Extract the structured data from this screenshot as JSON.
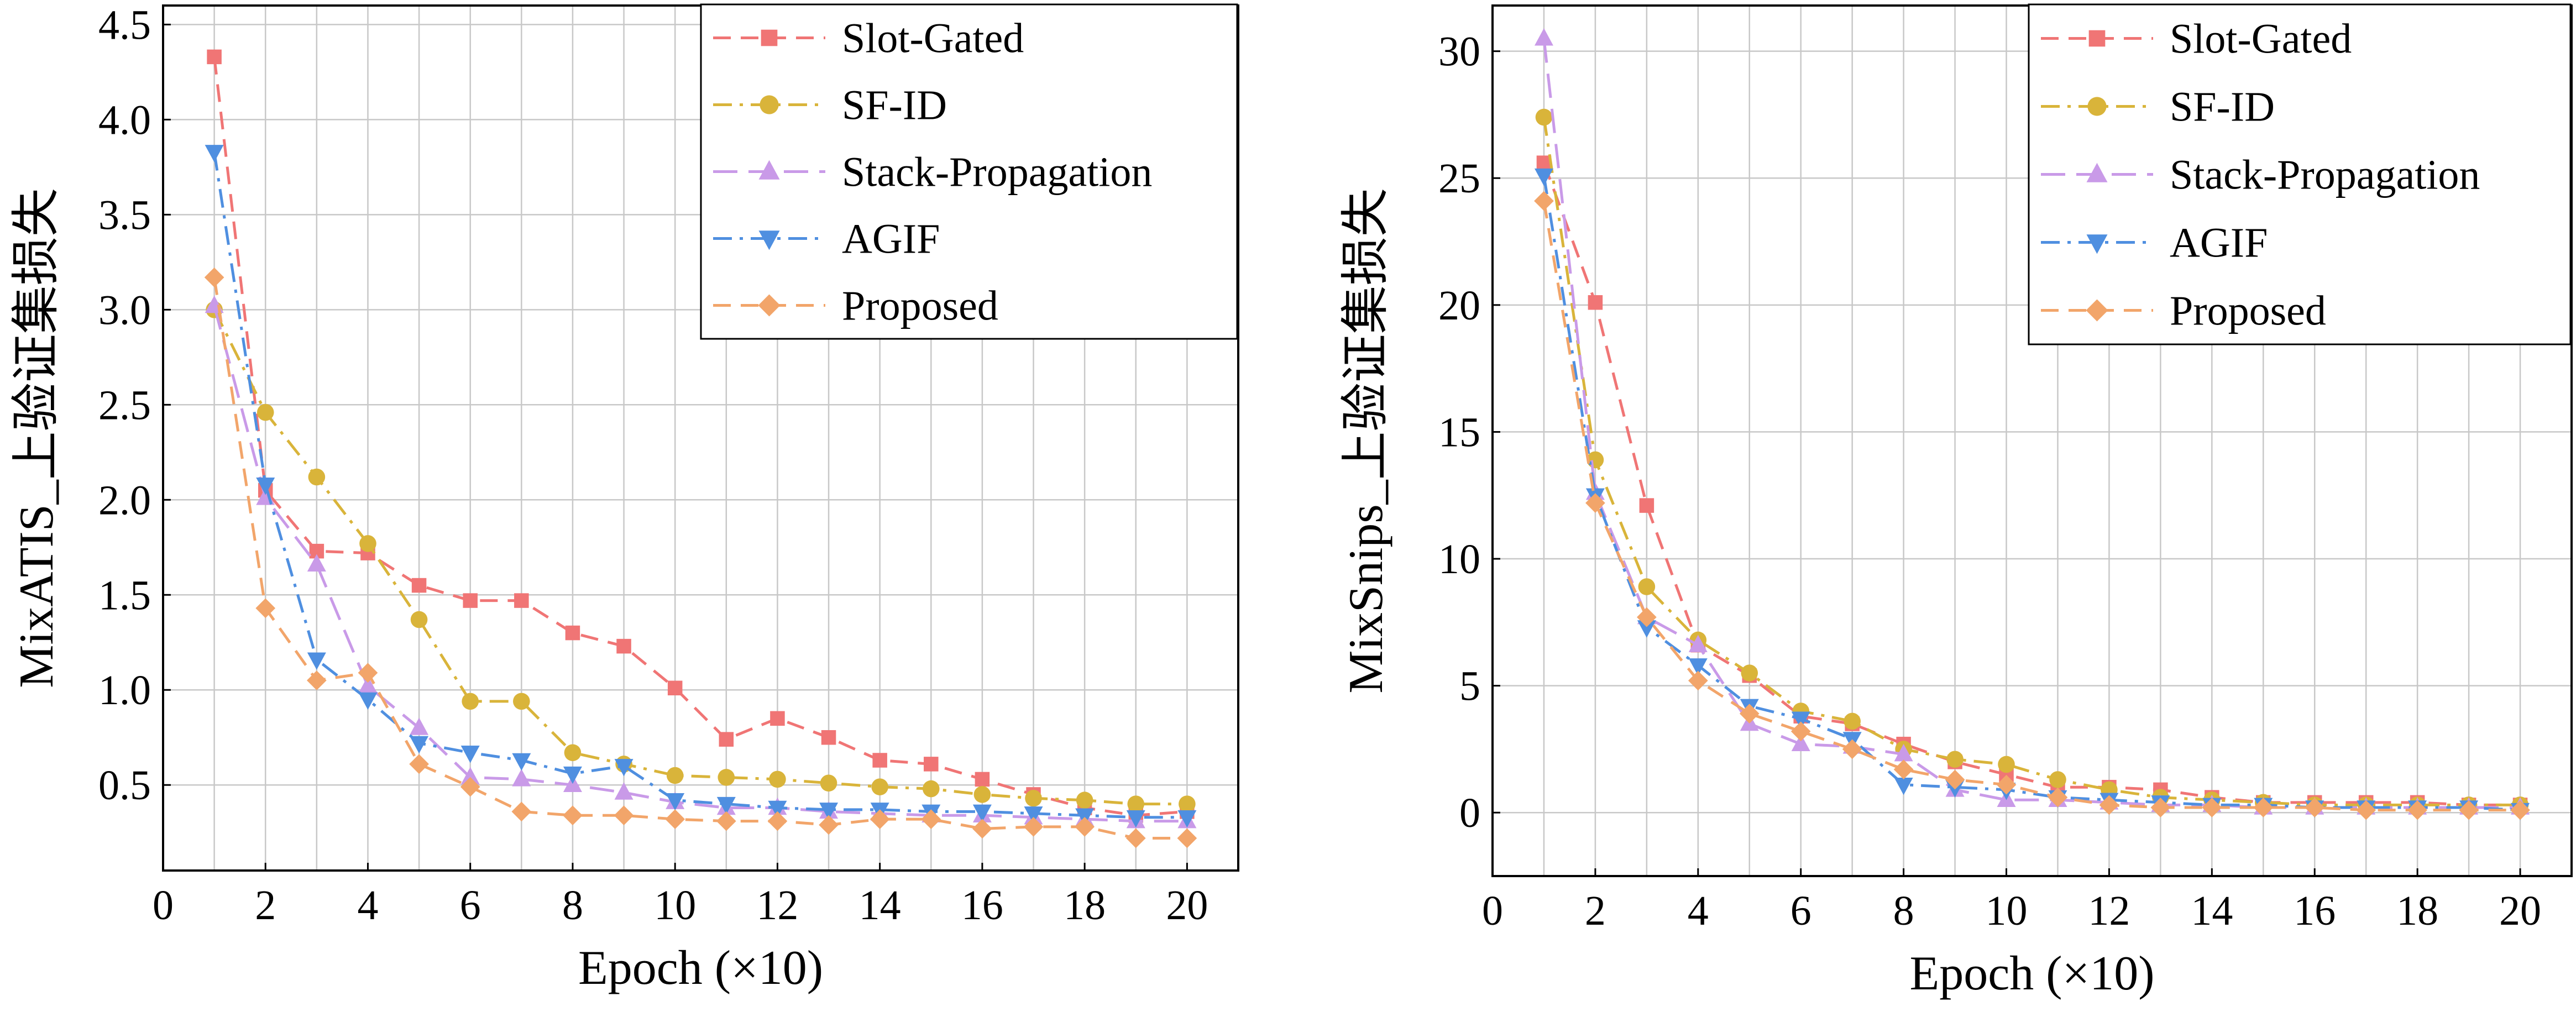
{
  "chart_data": [
    {
      "type": "line",
      "xlabel": "Epoch (×10)",
      "ylabel": "MixATIS_上验证集损失",
      "xlim": [
        0,
        21
      ],
      "ylim": [
        0.05,
        4.6
      ],
      "xticks": [
        0,
        2,
        4,
        6,
        8,
        10,
        12,
        14,
        16,
        18,
        20
      ],
      "yticks": [
        0.5,
        1.0,
        1.5,
        2.0,
        2.5,
        3.0,
        3.5,
        4.0,
        4.5
      ],
      "ytick_labels": [
        "0.5",
        "1.0",
        "1.5",
        "2.0",
        "2.5",
        "3.0",
        "3.5",
        "4.0",
        "4.5"
      ],
      "grid": true,
      "legend_position": "top-right",
      "x": [
        1,
        2,
        3,
        4,
        5,
        6,
        7,
        8,
        9,
        10,
        11,
        12,
        13,
        14,
        15,
        16,
        17,
        18,
        19,
        20
      ],
      "series": [
        {
          "name": "Slot-Gated",
          "color": "#f07575",
          "marker": "square",
          "dash": "dashed",
          "values": [
            4.33,
            2.05,
            1.73,
            1.72,
            1.55,
            1.47,
            1.47,
            1.3,
            1.23,
            1.01,
            0.74,
            0.85,
            0.75,
            0.63,
            0.61,
            0.53,
            0.45,
            0.38,
            0.34,
            0.36
          ]
        },
        {
          "name": "SF-ID",
          "color": "#d9b43a",
          "marker": "circle",
          "dash": "dashdot",
          "values": [
            3.0,
            2.46,
            2.12,
            1.77,
            1.37,
            0.94,
            0.94,
            0.67,
            0.61,
            0.55,
            0.54,
            0.53,
            0.51,
            0.49,
            0.48,
            0.45,
            0.43,
            0.42,
            0.4,
            0.4
          ]
        },
        {
          "name": "Stack-Propagation",
          "color": "#c99ae8",
          "marker": "triangle-up",
          "dash": "longdash",
          "values": [
            3.02,
            2.01,
            1.66,
            1.02,
            0.8,
            0.54,
            0.53,
            0.5,
            0.46,
            0.41,
            0.38,
            0.38,
            0.36,
            0.35,
            0.34,
            0.34,
            0.33,
            0.32,
            0.31,
            0.31
          ]
        },
        {
          "name": "AGIF",
          "color": "#4f8fe0",
          "marker": "triangle-down",
          "dash": "dashdot",
          "values": [
            3.83,
            2.08,
            1.16,
            0.95,
            0.72,
            0.67,
            0.63,
            0.56,
            0.6,
            0.42,
            0.4,
            0.38,
            0.37,
            0.37,
            0.36,
            0.36,
            0.35,
            0.34,
            0.33,
            0.33
          ]
        },
        {
          "name": "Proposed",
          "color": "#f2a56a",
          "marker": "diamond",
          "dash": "dashed",
          "values": [
            3.17,
            1.43,
            1.05,
            1.09,
            0.61,
            0.49,
            0.36,
            0.34,
            0.34,
            0.32,
            0.31,
            0.31,
            0.29,
            0.32,
            0.32,
            0.27,
            0.28,
            0.28,
            0.22,
            0.22
          ]
        }
      ]
    },
    {
      "type": "line",
      "xlabel": "Epoch (×10)",
      "ylabel": "MixSnips_上验证集损失",
      "xlim": [
        0,
        21
      ],
      "ylim": [
        -2.5,
        31.8
      ],
      "xticks": [
        0,
        2,
        4,
        6,
        8,
        10,
        12,
        14,
        16,
        18,
        20
      ],
      "yticks": [
        0,
        5,
        10,
        15,
        20,
        25,
        30
      ],
      "ytick_labels": [
        "0",
        "5",
        "10",
        "15",
        "20",
        "25",
        "30"
      ],
      "grid": true,
      "legend_position": "top-right",
      "x": [
        1,
        2,
        3,
        4,
        5,
        6,
        7,
        8,
        9,
        10,
        11,
        12,
        13,
        14,
        15,
        16,
        17,
        18,
        19,
        20
      ],
      "series": [
        {
          "name": "Slot-Gated",
          "color": "#f07575",
          "marker": "square",
          "dash": "dashed",
          "values": [
            25.6,
            20.1,
            12.1,
            6.6,
            5.4,
            3.8,
            3.5,
            2.7,
            2.0,
            1.5,
            1.0,
            1.0,
            0.9,
            0.6,
            0.4,
            0.4,
            0.4,
            0.4,
            0.3,
            0.3
          ]
        },
        {
          "name": "SF-ID",
          "color": "#d9b43a",
          "marker": "circle",
          "dash": "dashdot",
          "values": [
            27.4,
            13.9,
            8.9,
            6.8,
            5.5,
            4.0,
            3.6,
            2.5,
            2.1,
            1.9,
            1.3,
            0.9,
            0.6,
            0.5,
            0.4,
            0.3,
            0.3,
            0.3,
            0.3,
            0.3
          ]
        },
        {
          "name": "Stack-Propagation",
          "color": "#c99ae8",
          "marker": "triangle-up",
          "dash": "longdash",
          "values": [
            30.5,
            12.6,
            7.7,
            6.6,
            3.5,
            2.7,
            2.6,
            2.3,
            0.9,
            0.5,
            0.5,
            0.4,
            0.3,
            0.3,
            0.2,
            0.2,
            0.2,
            0.2,
            0.2,
            0.2
          ]
        },
        {
          "name": "AGIF",
          "color": "#4f8fe0",
          "marker": "triangle-down",
          "dash": "dashdot",
          "values": [
            25.1,
            12.5,
            7.3,
            5.8,
            4.2,
            3.7,
            2.9,
            1.1,
            1.0,
            0.9,
            0.6,
            0.5,
            0.4,
            0.3,
            0.3,
            0.2,
            0.2,
            0.2,
            0.2,
            0.1
          ]
        },
        {
          "name": "Proposed",
          "color": "#f2a56a",
          "marker": "diamond",
          "dash": "dashed",
          "values": [
            24.1,
            12.2,
            7.7,
            5.2,
            3.9,
            3.2,
            2.5,
            1.7,
            1.3,
            1.1,
            0.6,
            0.3,
            0.2,
            0.2,
            0.2,
            0.2,
            0.1,
            0.1,
            0.1,
            0.1
          ]
        }
      ]
    }
  ]
}
